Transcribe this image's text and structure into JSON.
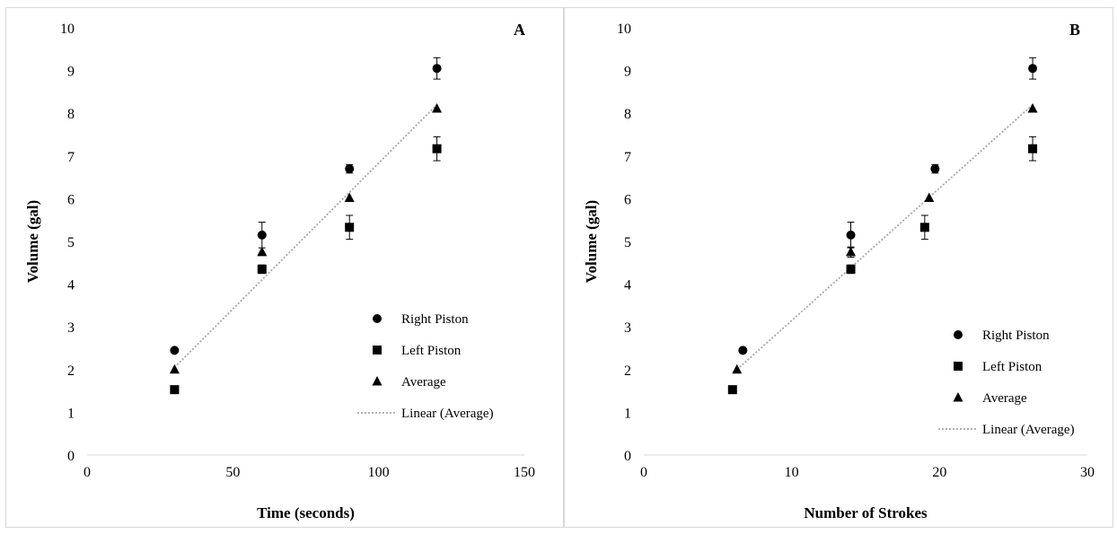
{
  "chart_data": [
    {
      "type": "scatter",
      "panel_label": "A",
      "xlabel": "Time (seconds)",
      "ylabel": "Volume (gal)",
      "xlim": [
        0,
        150
      ],
      "ylim": [
        0,
        10
      ],
      "xticks": [
        "0",
        "50",
        "100",
        "150"
      ],
      "yticks": [
        "0",
        "1",
        "2",
        "3",
        "4",
        "5",
        "6",
        "7",
        "8",
        "9",
        "10"
      ],
      "grid": false,
      "legend_position": "bottom-right",
      "series": [
        {
          "name": "Right Piston",
          "marker": "circle",
          "x": [
            30,
            60,
            90,
            120
          ],
          "y": [
            2.45,
            5.15,
            6.7,
            9.05
          ],
          "error": [
            0,
            0.3,
            0.1,
            0.25
          ]
        },
        {
          "name": "Left Piston",
          "marker": "square",
          "x": [
            30,
            60,
            90,
            120
          ],
          "y": [
            1.53,
            4.35,
            5.33,
            7.17
          ],
          "error": [
            0,
            0.1,
            0.28,
            0.28
          ]
        },
        {
          "name": "Average",
          "marker": "triangle",
          "x": [
            30,
            60,
            90,
            120
          ],
          "y": [
            2.0,
            4.75,
            6.02,
            8.11
          ],
          "error": [
            0,
            0,
            0,
            0
          ]
        }
      ],
      "trendline": {
        "name": "Linear (Average)",
        "of": "Average",
        "x": [
          30,
          120
        ],
        "y": [
          2.05,
          8.2
        ]
      }
    },
    {
      "type": "scatter",
      "panel_label": "B",
      "xlabel": "Number of Strokes",
      "ylabel": "Volume (gal)",
      "xlim": [
        0,
        30
      ],
      "ylim": [
        0,
        10
      ],
      "xticks": [
        "0",
        "10",
        "20",
        "30"
      ],
      "yticks": [
        "0",
        "1",
        "2",
        "3",
        "4",
        "5",
        "6",
        "7",
        "8",
        "9",
        "10"
      ],
      "grid": false,
      "legend_position": "bottom-right",
      "series": [
        {
          "name": "Right Piston",
          "marker": "circle",
          "x": [
            6.7,
            14,
            19.7,
            26.3
          ],
          "y": [
            2.45,
            5.15,
            6.7,
            9.05
          ],
          "error": [
            0,
            0.3,
            0.1,
            0.25
          ]
        },
        {
          "name": "Left Piston",
          "marker": "square",
          "x": [
            6,
            14,
            19,
            26.3
          ],
          "y": [
            1.53,
            4.35,
            5.33,
            7.17
          ],
          "error": [
            0,
            0.1,
            0.28,
            0.28
          ]
        },
        {
          "name": "Average",
          "marker": "triangle",
          "x": [
            6.3,
            14,
            19.3,
            26.3
          ],
          "y": [
            2.0,
            4.75,
            6.02,
            8.11
          ],
          "error": [
            0,
            0.12,
            0,
            0
          ]
        }
      ],
      "trendline": {
        "name": "Linear (Average)",
        "of": "Average",
        "x": [
          6.3,
          26.3
        ],
        "y": [
          2.0,
          8.2
        ]
      }
    }
  ],
  "colors": {
    "markers": "#000000",
    "trendline": "#a6a6a6",
    "axis": "#d9d9d9"
  }
}
